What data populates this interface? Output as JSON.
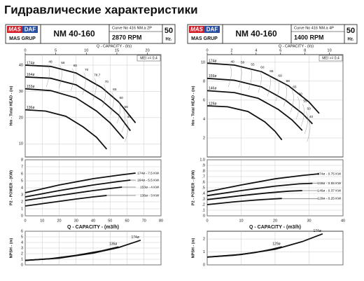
{
  "title": "Гидравлические характеристики",
  "panels": [
    {
      "logo_left": "MAS",
      "logo_right": "DAF",
      "brand": "MAS GRUP",
      "model": "NM 40-160",
      "curve_no": "Curve No 416 NM.a 2P",
      "rpm": "2870 RPM",
      "freq": "50",
      "freq_unit": "Hz.",
      "top_axis": {
        "label": "Q - CAPACITY - (l/s)",
        "xlim": [
          0,
          22.22
        ],
        "xticks": [
          0,
          5,
          10,
          15,
          20
        ]
      },
      "xlabel": "Q - CAPACITY - (m3/h)",
      "charts": [
        {
          "type": "line",
          "ylabel": "Hm - Total HEAD - (m)",
          "xlim": [
            0,
            80
          ],
          "xticks": [
            0,
            10,
            20,
            30,
            40,
            50,
            60,
            70,
            80
          ],
          "ylim": [
            5,
            44
          ],
          "yticks": [
            10,
            20,
            30,
            40
          ],
          "note": "MEI >= 0.4",
          "eff_labels": [
            "48",
            "58",
            "65",
            "70",
            "78.7",
            "70",
            "65",
            "60",
            "58",
            "48"
          ],
          "series": [
            {
              "name": "174ø",
              "color": "#111",
              "x": [
                0,
                15,
                30,
                45,
                55,
                65
              ],
              "values": [
                40,
                39.5,
                37,
                31.5,
                26,
                18
              ]
            },
            {
              "name": "164ø",
              "color": "#111",
              "x": [
                0,
                15,
                30,
                45,
                55,
                62
              ],
              "values": [
                35.5,
                35,
                32.5,
                26.5,
                21,
                15
              ]
            },
            {
              "name": "153ø",
              "color": "#111",
              "x": [
                0,
                15,
                30,
                42,
                50,
                58
              ],
              "values": [
                31,
                30.3,
                27.5,
                22.5,
                18,
                12
              ]
            },
            {
              "name": "136ø",
              "color": "#111",
              "x": [
                0,
                12,
                24,
                34,
                42,
                48
              ],
              "values": [
                23,
                22.5,
                20.5,
                16.5,
                12.5,
                8
              ]
            }
          ]
        },
        {
          "type": "line",
          "ylabel": "P2 - POWER - (KW)",
          "xlim": [
            0,
            80
          ],
          "xticks": [
            0,
            10,
            20,
            30,
            40,
            50,
            60,
            70,
            80
          ],
          "ylim": [
            0,
            8
          ],
          "yticks": [
            0,
            1,
            2,
            3,
            4,
            5,
            6,
            7,
            8
          ],
          "series": [
            {
              "name": "174ø",
              "label": "174ø - 7.5 KW",
              "color": "#111",
              "x": [
                0,
                20,
                40,
                55,
                65
              ],
              "values": [
                3.3,
                4.4,
                5.3,
                5.8,
                6.1
              ]
            },
            {
              "name": "164ø",
              "label": "164ø - 5.5 KW",
              "color": "#111",
              "x": [
                0,
                20,
                40,
                55,
                62
              ],
              "values": [
                2.7,
                3.6,
                4.4,
                4.9,
                5.1
              ]
            },
            {
              "name": "153ø",
              "label": "153ø - 4 KW",
              "color": "#111",
              "x": [
                0,
                20,
                40,
                50,
                57
              ],
              "values": [
                2.2,
                2.9,
                3.6,
                3.9,
                4.1
              ]
            },
            {
              "name": "136ø",
              "label": "136ø - 3 KW",
              "color": "#111",
              "x": [
                0,
                15,
                30,
                40,
                48
              ],
              "values": [
                1.4,
                1.9,
                2.4,
                2.7,
                2.9
              ]
            }
          ]
        },
        {
          "type": "line",
          "ylabel": "NPSH - (m)",
          "xlim": [
            0,
            80
          ],
          "xticks": [
            0,
            10,
            20,
            30,
            40,
            50,
            60,
            70,
            80
          ],
          "ylim": [
            0,
            6
          ],
          "yticks": [
            0,
            1,
            2,
            3,
            4,
            5,
            6
          ],
          "series": [
            {
              "name": "136ø",
              "color": "#111",
              "x": [
                0,
                15,
                30,
                45,
                55
              ],
              "values": [
                0.8,
                1.1,
                1.7,
                2.5,
                3.2
              ]
            },
            {
              "name": "174ø",
              "color": "#111",
              "x": [
                0,
                20,
                40,
                55,
                68
              ],
              "values": [
                0.8,
                1.2,
                2.1,
                3.1,
                4.4
              ]
            }
          ]
        }
      ]
    },
    {
      "logo_left": "MAS",
      "logo_right": "DAF",
      "brand": "MAS GRUP",
      "model": "NM 40-160",
      "curve_no": "Curve No 416 NM.a 4P",
      "rpm": "1400 RPM",
      "freq": "50",
      "freq_unit": "Hz.",
      "top_axis": {
        "label": "Q - CAPACITY - (l/s)",
        "xlim": [
          0,
          11.11
        ],
        "xticks": [
          0,
          2,
          4,
          6,
          8,
          10
        ]
      },
      "xlabel": "Q - CAPACITY - (m3/h)",
      "charts": [
        {
          "type": "line",
          "ylabel": "Hm - Total HEAD - (m)",
          "xlim": [
            0,
            40
          ],
          "xticks": [
            0,
            10,
            20,
            30,
            40
          ],
          "ylim": [
            0,
            10.8
          ],
          "yticks": [
            2,
            4,
            6,
            8,
            10
          ],
          "note": "MEI >= 0.4",
          "eff_labels": [
            "40",
            "50",
            "55",
            "60",
            "65",
            "68",
            "68",
            "65",
            "60",
            "55",
            "50",
            "40"
          ],
          "series": [
            {
              "name": "174ø",
              "color": "#111",
              "x": [
                0,
                8,
                16,
                24,
                30,
                33
              ],
              "values": [
                9.9,
                9.7,
                9.0,
                7.5,
                5.8,
                4.6
              ]
            },
            {
              "name": "159ø",
              "color": "#111",
              "x": [
                0,
                8,
                16,
                23,
                28,
                31
              ],
              "values": [
                8.3,
                8.1,
                7.4,
                6.0,
                4.6,
                3.5
              ]
            },
            {
              "name": "146ø",
              "color": "#111",
              "x": [
                0,
                8,
                15,
                21,
                25,
                28
              ],
              "values": [
                7.0,
                6.8,
                6.2,
                5.0,
                3.9,
                2.8
              ]
            },
            {
              "name": "129ø",
              "color": "#111",
              "x": [
                0,
                6,
                12,
                17,
                20,
                22
              ],
              "values": [
                5.4,
                5.3,
                4.8,
                3.7,
                2.7,
                1.8
              ]
            }
          ]
        },
        {
          "type": "line",
          "ylabel": "P2 - POWER - (KW)",
          "xlim": [
            0,
            40
          ],
          "xticks": [
            0,
            10,
            20,
            30,
            40
          ],
          "ylim": [
            0,
            1
          ],
          "yticks": [
            0,
            {
              "value": 0.1,
              "label": ".1"
            },
            {
              "value": 0.2,
              "label": ".2"
            },
            {
              "value": 0.3,
              "label": ".3"
            },
            {
              "value": 0.4,
              "label": ".4"
            },
            {
              "value": 0.5,
              "label": ".5"
            },
            {
              "value": 0.6,
              "label": ".6"
            },
            {
              "value": 0.7,
              "label": ".7"
            },
            {
              "value": 0.8,
              "label": ".8"
            },
            {
              "value": 0.9,
              "label": ".9"
            },
            {
              "value": 1,
              "label": "1.0"
            }
          ],
          "series": [
            {
              "name": "174ø",
              "label": "174ø - 0.75 KW",
              "color": "#111",
              "x": [
                0,
                10,
                20,
                28,
                33
              ],
              "values": [
                0.43,
                0.55,
                0.66,
                0.72,
                0.75
              ]
            },
            {
              "name": "159ø",
              "label": "159ø - 0.55 KW",
              "color": "#111",
              "x": [
                0,
                10,
                20,
                27,
                31
              ],
              "values": [
                0.36,
                0.45,
                0.53,
                0.57,
                0.58
              ]
            },
            {
              "name": "146ø",
              "label": "146ø - 0.37 KW",
              "color": "#111",
              "x": [
                0,
                10,
                18,
                24,
                28
              ],
              "values": [
                0.29,
                0.36,
                0.41,
                0.44,
                0.45
              ]
            },
            {
              "name": "129ø",
              "label": "129ø - 0.25 KW",
              "color": "#111",
              "x": [
                0,
                8,
                14,
                19,
                22
              ],
              "values": [
                0.2,
                0.25,
                0.28,
                0.3,
                0.31
              ]
            }
          ]
        },
        {
          "type": "line",
          "ylabel": "NPSH - (m)",
          "xlim": [
            0,
            40
          ],
          "xticks": [
            0,
            10,
            20,
            30,
            40
          ],
          "ylim": [
            0,
            2.6
          ],
          "yticks": [
            0,
            1,
            2
          ],
          "series": [
            {
              "name": "129ø",
              "color": "#111",
              "x": [
                0,
                8,
                14,
                19,
                22
              ],
              "values": [
                0.6,
                0.75,
                0.95,
                1.2,
                1.4
              ]
            },
            {
              "name": "174ø",
              "color": "#111",
              "x": [
                0,
                10,
                20,
                28,
                34
              ],
              "values": [
                0.6,
                0.8,
                1.2,
                1.8,
                2.4
              ]
            }
          ]
        }
      ]
    }
  ]
}
